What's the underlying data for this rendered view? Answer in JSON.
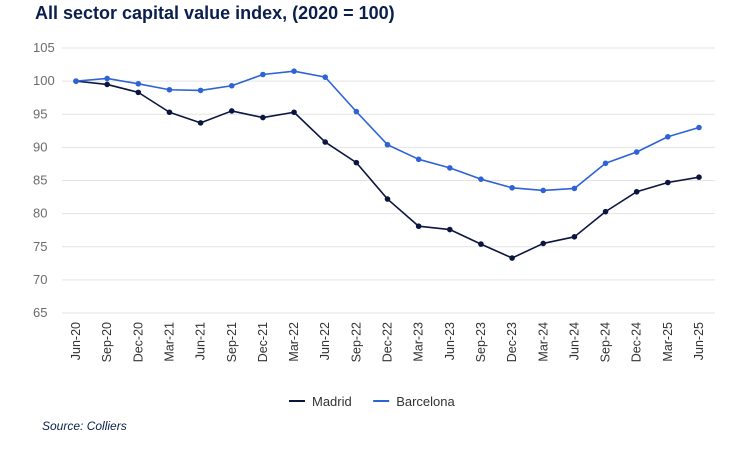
{
  "chart_data": {
    "type": "line",
    "title": "All sector capital value index, (2020 = 100)",
    "categories": [
      "Jun-20",
      "Sep-20",
      "Dec-20",
      "Mar-21",
      "Jun-21",
      "Sep-21",
      "Dec-21",
      "Mar-22",
      "Jun-22",
      "Sep-22",
      "Dec-22",
      "Mar-23",
      "Jun-23",
      "Sep-23",
      "Dec-23",
      "Mar-24",
      "Jun-24",
      "Sep-24",
      "Dec-24",
      "Mar-25",
      "Jun-25"
    ],
    "series": [
      {
        "name": "Madrid",
        "color": "#0a1540",
        "values": [
          100,
          99.5,
          98.3,
          95.3,
          93.7,
          95.5,
          94.5,
          95.3,
          90.8,
          87.7,
          82.2,
          78.1,
          77.6,
          75.4,
          73.3,
          75.5,
          76.5,
          80.3,
          83.3,
          84.7,
          85.5
        ]
      },
      {
        "name": "Barcelona",
        "color": "#2e63d6",
        "values": [
          100,
          100.4,
          99.6,
          98.7,
          98.6,
          99.3,
          101,
          101.5,
          100.6,
          95.4,
          90.4,
          88.2,
          86.9,
          85.2,
          83.9,
          83.5,
          83.8,
          87.6,
          89.3,
          91.6,
          93
        ]
      }
    ],
    "yticks": [
      "65",
      "70",
      "75",
      "80",
      "85",
      "90",
      "95",
      "100",
      "105"
    ],
    "ylim": [
      65,
      105
    ],
    "grid": true,
    "legend": "bottom-center"
  },
  "source": "Source: Colliers"
}
